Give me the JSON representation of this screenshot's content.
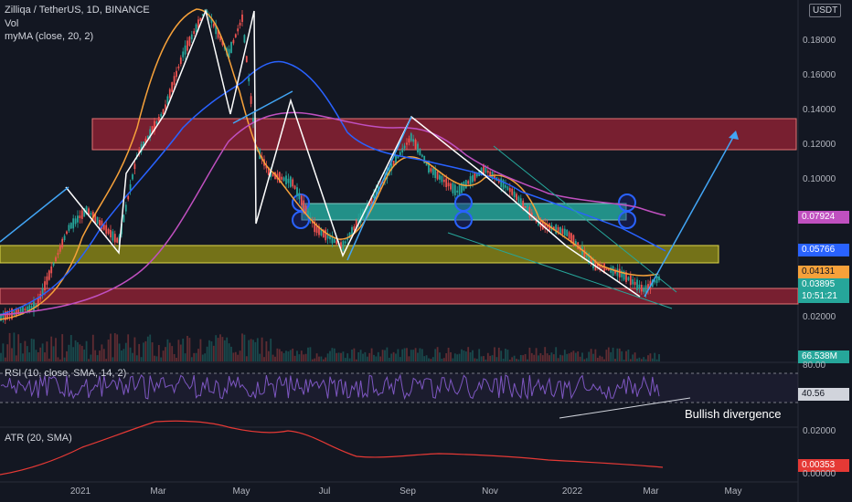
{
  "header": {
    "title": "Zilliqa / TetherUS, 1D, BINANCE",
    "vol_label": "Vol",
    "ma_label": "myMA (close, 20, 2)"
  },
  "price_axis": {
    "currency_badge": "USDT",
    "ticks": [
      "0.18000",
      "0.16000",
      "0.14000",
      "0.12000",
      "0.10000",
      "0.02000"
    ],
    "labels": {
      "ma_pink": "0.07924",
      "ma_blue": "0.05766",
      "ma_orange": "0.04131",
      "last_price": "0.03895",
      "countdown": "10:51:21",
      "volume": "66.538M"
    }
  },
  "rsi": {
    "label": "RSI (10, close, SMA, 14, 2)",
    "tick_top": "80.00",
    "value": "40.56",
    "annotation": "Bullish divergence"
  },
  "atr": {
    "label": "ATR (20, SMA)",
    "tick_top": "0.02000",
    "value": "0.00353",
    "tick_bottom": "0.00000"
  },
  "time_axis": [
    "2021",
    "Mar",
    "May",
    "Jul",
    "Sep",
    "Nov",
    "2022",
    "Mar",
    "May"
  ],
  "colors": {
    "background": "#131722",
    "candle_up": "#26a69a",
    "candle_down": "#ef5350",
    "ma_orange": "#f6a13a",
    "ma_blue": "#2962ff",
    "ma_pink": "#c050c0",
    "zone_red": "#9b2335",
    "zone_yellow": "#8d8a16",
    "zone_teal": "#26a69a",
    "rsi_line": "#7e57c2",
    "atr_line": "#e53935"
  },
  "chart_data": [
    {
      "type": "line",
      "title": "Zilliqa / TetherUS, 1D, BINANCE",
      "x": [
        "2020-12-01",
        "2021-01-01",
        "2021-02-01",
        "2021-03-01",
        "2021-04-01",
        "2021-05-01",
        "2021-06-01",
        "2021-07-01",
        "2021-08-01",
        "2021-09-01",
        "2021-10-01",
        "2021-11-01",
        "2021-12-01",
        "2022-01-01",
        "2022-02-01",
        "2022-03-01"
      ],
      "series": [
        {
          "name": "close",
          "values": [
            0.022,
            0.085,
            0.13,
            0.155,
            0.2,
            0.21,
            0.1,
            0.058,
            0.098,
            0.135,
            0.105,
            0.096,
            0.075,
            0.06,
            0.052,
            0.039
          ]
        },
        {
          "name": "myMA (close, 20, 2)",
          "values": [
            0.02,
            0.06,
            0.12,
            0.15,
            0.19,
            0.2,
            0.12,
            0.07,
            0.085,
            0.12,
            0.1,
            0.095,
            0.08,
            0.062,
            0.05,
            0.0413
          ]
        }
      ],
      "last_value": 0.03895
    },
    {
      "type": "line",
      "title": "RSI (10, close, SMA, 14, 2)",
      "ylim_top": 80,
      "last_value": 40.56
    },
    {
      "type": "line",
      "title": "ATR (20, SMA)",
      "ylim": [
        0,
        0.02
      ],
      "last_value": 0.00353
    }
  ]
}
